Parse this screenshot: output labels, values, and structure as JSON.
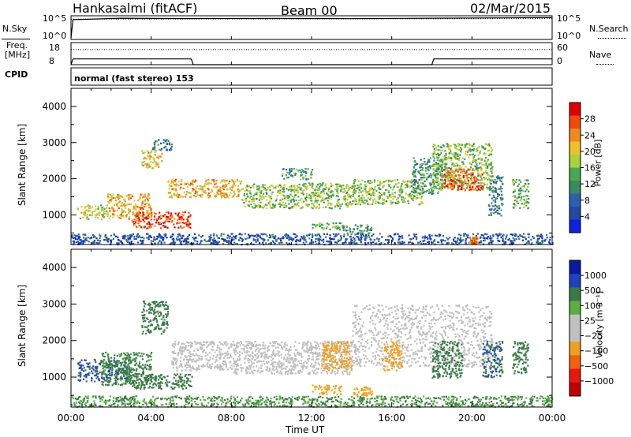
{
  "header": {
    "station": "Hankasalmi (fitACF)",
    "beam": "Beam 00",
    "date": "02/Mar/2015"
  },
  "noise_panel": {
    "left_label": "N.Sky",
    "right_label": "N.Search",
    "ytick_top": "10^5",
    "ytick_bottom": "10^0"
  },
  "freq_panel": {
    "left_label_1": "Freq.",
    "left_label_2": "[MHz]",
    "right_label": "Nave",
    "left_ytick_top": "18",
    "left_ytick_bottom": "8",
    "right_ytick_top": "60",
    "right_ytick_bottom": "0"
  },
  "cpid": {
    "label": "CPID",
    "text": "normal (fast stereo) 153"
  },
  "axes": {
    "ylabel": "Slant Range [km]",
    "xlabel": "Time UT",
    "xticks": [
      "00:00",
      "04:00",
      "08:00",
      "12:00",
      "16:00",
      "20:00",
      "00:00"
    ],
    "yticks": [
      "1000",
      "2000",
      "3000",
      "4000"
    ]
  },
  "colors": {
    "power": [
      "#1020e0",
      "#1e4aa0",
      "#2e5fb0",
      "#3a8a5a",
      "#4aa855",
      "#a8d23a",
      "#f0c02a",
      "#f08a20",
      "#f04a10",
      "#e00000"
    ],
    "velocity": [
      "#0a1aa0",
      "#2040c0",
      "#3a7a48",
      "#58b040",
      "#c0c0c0",
      "#c0c0c0",
      "#f0a020",
      "#f06010",
      "#e81810",
      "#c00000"
    ]
  },
  "colorbars": {
    "power": {
      "label": "Power [dB]",
      "ticks": [
        "4",
        "8",
        "12",
        "16",
        "20",
        "24",
        "28"
      ]
    },
    "velocity": {
      "label": "Velocity [m s⁻¹]",
      "ticks": [
        "1000",
        "500",
        "100",
        "25",
        "−25",
        "−100",
        "−500",
        "−1000"
      ]
    }
  },
  "chart_data": [
    {
      "type": "line",
      "title": "Hankasalmi (fitACF) Beam 00 02/Mar/2015",
      "xlabel": "Time UT",
      "ylabel": "N.Sky",
      "y2label": "N.Search",
      "x_range": [
        "00:00",
        "24:00"
      ],
      "ylim": [
        1,
        100000
      ],
      "y_scale": "log",
      "series": [
        {
          "name": "N.Sky",
          "x": [
            0,
            0.1,
            2.5,
            6,
            10,
            14,
            18,
            21.3,
            24
          ],
          "y": [
            2,
            15000,
            30000,
            25000,
            28000,
            24000,
            30000,
            35000,
            40000
          ]
        },
        {
          "name": "N.Search",
          "x": [
            0,
            24
          ],
          "y": [
            20000,
            25000
          ]
        }
      ]
    },
    {
      "type": "line",
      "xlabel": "Time UT",
      "ylabel": "Freq. [MHz]",
      "y2label": "Nave",
      "ylim": [
        8,
        18
      ],
      "y2lim": [
        0,
        60
      ],
      "series": [
        {
          "name": "Freq.",
          "x": [
            0,
            0.1,
            6,
            6.1,
            18,
            18.1,
            24
          ],
          "y": [
            8,
            10.6,
            10.6,
            8,
            8,
            10.6,
            10.6
          ]
        },
        {
          "name": "Nave",
          "x": [
            0,
            24
          ],
          "y": [
            41,
            41
          ]
        }
      ]
    },
    {
      "type": "heatmap",
      "quantity": "Power",
      "unit": "dB",
      "xlabel": "Time UT",
      "ylabel": "Slant Range [km]",
      "x_range": [
        "00:00",
        "24:00"
      ],
      "ylim": [
        180,
        4500
      ],
      "colorbar_ticks": [
        4,
        8,
        12,
        16,
        20,
        24,
        28
      ],
      "scatter_regions": [
        {
          "t_start": 0.3,
          "t_end": 1.8,
          "r_min": 900,
          "r_max": 1300,
          "level": 18
        },
        {
          "t_start": 1.8,
          "t_end": 4.0,
          "r_min": 900,
          "r_max": 1600,
          "level": 22
        },
        {
          "t_start": 3.0,
          "t_end": 6.0,
          "r_min": 650,
          "r_max": 1100,
          "level": 28
        },
        {
          "t_start": 3.5,
          "t_end": 4.5,
          "r_min": 2300,
          "r_max": 2800,
          "level": 20
        },
        {
          "t_start": 4.0,
          "t_end": 5.0,
          "r_min": 2800,
          "r_max": 3100,
          "level": 10
        },
        {
          "t_start": 4.8,
          "t_end": 8.5,
          "r_min": 1500,
          "r_max": 2000,
          "level": 22
        },
        {
          "t_start": 8.5,
          "t_end": 14.0,
          "r_min": 1200,
          "r_max": 1900,
          "level": 16
        },
        {
          "t_start": 10.5,
          "t_end": 12.0,
          "r_min": 2000,
          "r_max": 2300,
          "level": 12
        },
        {
          "t_start": 12.0,
          "t_end": 13.5,
          "r_min": 600,
          "r_max": 800,
          "level": 14
        },
        {
          "t_start": 14.0,
          "t_end": 17.5,
          "r_min": 1300,
          "r_max": 2000,
          "level": 16
        },
        {
          "t_start": 13.5,
          "t_end": 15.0,
          "r_min": 500,
          "r_max": 750,
          "level": 12
        },
        {
          "t_start": 17.0,
          "t_end": 18.5,
          "r_min": 1600,
          "r_max": 2600,
          "level": 12
        },
        {
          "t_start": 18.0,
          "t_end": 21.0,
          "r_min": 1700,
          "r_max": 3000,
          "level": 16
        },
        {
          "t_start": 18.5,
          "t_end": 20.5,
          "r_min": 1700,
          "r_max": 2300,
          "level": 26
        },
        {
          "t_start": 20.8,
          "t_end": 21.5,
          "r_min": 1000,
          "r_max": 2100,
          "level": 10
        },
        {
          "t_start": 22.0,
          "t_end": 22.8,
          "r_min": 1200,
          "r_max": 2000,
          "level": 14
        },
        {
          "t_start": 0.0,
          "t_end": 24.0,
          "r_min": 200,
          "r_max": 500,
          "level": 6
        },
        {
          "t_start": 19.8,
          "t_end": 20.3,
          "r_min": 200,
          "r_max": 400,
          "level": 26
        }
      ]
    },
    {
      "type": "heatmap",
      "quantity": "Velocity",
      "unit": "m s^-1",
      "xlabel": "Time UT",
      "ylabel": "Slant Range [km]",
      "x_range": [
        "00:00",
        "24:00"
      ],
      "ylim": [
        180,
        4500
      ],
      "colorbar_ticks": [
        1000,
        500,
        100,
        25,
        -25,
        -100,
        -500,
        -1000
      ],
      "scatter_regions": [
        {
          "t_start": 0.3,
          "t_end": 3.0,
          "r_min": 900,
          "r_max": 1500,
          "level": 300
        },
        {
          "t_start": 1.5,
          "t_end": 4.0,
          "r_min": 800,
          "r_max": 1700,
          "level": 80
        },
        {
          "t_start": 3.0,
          "t_end": 6.0,
          "r_min": 700,
          "r_max": 1100,
          "level": 150
        },
        {
          "t_start": 3.5,
          "t_end": 4.8,
          "r_min": 2200,
          "r_max": 3100,
          "level": 200
        },
        {
          "t_start": 5.0,
          "t_end": 8.0,
          "r_min": 1200,
          "r_max": 2000,
          "level": 0
        },
        {
          "t_start": 8.0,
          "t_end": 14.0,
          "r_min": 1100,
          "r_max": 2000,
          "level": 0
        },
        {
          "t_start": 12.0,
          "t_end": 13.5,
          "r_min": 550,
          "r_max": 800,
          "level": -200
        },
        {
          "t_start": 14.0,
          "t_end": 15.0,
          "r_min": 500,
          "r_max": 750,
          "level": -200
        },
        {
          "t_start": 12.5,
          "t_end": 14.0,
          "r_min": 1200,
          "r_max": 2000,
          "level": -150
        },
        {
          "t_start": 14.0,
          "t_end": 21.0,
          "r_min": 1300,
          "r_max": 3000,
          "level": 0
        },
        {
          "t_start": 15.5,
          "t_end": 16.5,
          "r_min": 1200,
          "r_max": 2000,
          "level": -200
        },
        {
          "t_start": 18.0,
          "t_end": 19.5,
          "r_min": 1000,
          "r_max": 2000,
          "level": 150
        },
        {
          "t_start": 20.5,
          "t_end": 21.5,
          "r_min": 1000,
          "r_max": 2000,
          "level": 300
        },
        {
          "t_start": 22.0,
          "t_end": 22.8,
          "r_min": 1100,
          "r_max": 2000,
          "level": 200
        },
        {
          "t_start": 0.0,
          "t_end": 24.0,
          "r_min": 200,
          "r_max": 500,
          "level": 60
        }
      ]
    }
  ]
}
